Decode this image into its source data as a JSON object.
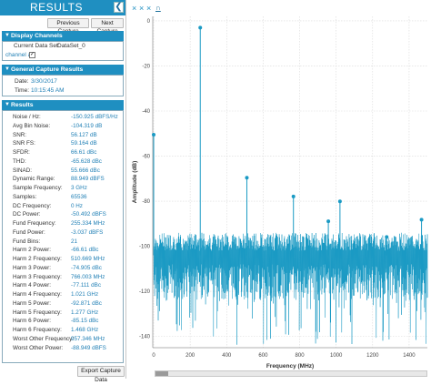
{
  "panel": {
    "title": "RESULTS",
    "collapse_icon": "chevron-left-icon",
    "prev_button": "Previous Capture",
    "next_button": "Next Capture"
  },
  "display_channels": {
    "header": "Display Channels",
    "dataset_label": "Current Data Set:",
    "dataset_value": "DataSet_0",
    "channel_label": "channel a",
    "channel_checked": true
  },
  "general_capture": {
    "header": "General Capture Results",
    "date_label": "Date:",
    "date_value": "3/30/2017",
    "time_label": "Time:",
    "time_value": "10:15:45 AM"
  },
  "results": {
    "header": "Results",
    "rows": [
      {
        "label": "Noise / Hz:",
        "value": "-150.925 dBFS/Hz"
      },
      {
        "label": "Avg Bin Noise:",
        "value": "-104.319 dB"
      },
      {
        "label": "SNR:",
        "value": "56.127 dB"
      },
      {
        "label": "SNR FS:",
        "value": "59.164 dB"
      },
      {
        "label": "SFDR:",
        "value": "66.61 dBc"
      },
      {
        "label": "THD:",
        "value": "-65.628 dBc"
      },
      {
        "label": "SINAD:",
        "value": "55.666 dBc"
      },
      {
        "label": "Dynamic Range:",
        "value": "88.949 dBFS"
      },
      {
        "label": "Sample Frequency:",
        "value": "3 GHz"
      },
      {
        "label": "Samples:",
        "value": "65536"
      },
      {
        "label": "DC Frequency:",
        "value": "0 Hz"
      },
      {
        "label": "DC Power:",
        "value": "-50.492 dBFS"
      },
      {
        "label": "Fund Frequency:",
        "value": "255.334 MHz"
      },
      {
        "label": "Fund Power:",
        "value": "-3.037 dBFS"
      },
      {
        "label": "Fund Bins:",
        "value": "21"
      },
      {
        "label": "Harm 2 Power:",
        "value": "-66.61 dBc"
      },
      {
        "label": "Harm 2 Frequency:",
        "value": "510.669 MHz"
      },
      {
        "label": "Harm 3 Power:",
        "value": "-74.905 dBc"
      },
      {
        "label": "Harm 3 Frequency:",
        "value": "766.003 MHz"
      },
      {
        "label": "Harm 4 Power:",
        "value": "-77.111 dBc"
      },
      {
        "label": "Harm 4 Frequency:",
        "value": "1.021 GHz"
      },
      {
        "label": "Harm 5 Power:",
        "value": "-92.871 dBc"
      },
      {
        "label": "Harm 5 Frequency:",
        "value": "1.277 GHz"
      },
      {
        "label": "Harm 6 Power:",
        "value": "-85.15 dBc"
      },
      {
        "label": "Harm 6 Frequency:",
        "value": "1.468 GHz"
      },
      {
        "label": "Worst Other Frequency:",
        "value": "957.346 MHz"
      },
      {
        "label": "Worst Other Power:",
        "value": "-88.949 dBFS"
      }
    ]
  },
  "export_button": "Export Capture Data",
  "toolbar": {
    "icons": [
      "cursor-x-icon",
      "cursor-y-icon",
      "zoom-fit-icon",
      "marker-icon"
    ]
  },
  "chart_data": {
    "type": "line",
    "title": "",
    "xlabel": "Frequency (MHz)",
    "ylabel": "Amplitude (dB)",
    "xlim": [
      -5,
      1500
    ],
    "ylim": [
      -145,
      2
    ],
    "x_ticks": [
      0,
      200,
      400,
      600,
      800,
      1000,
      1200,
      1400
    ],
    "y_ticks": [
      0,
      -20,
      -40,
      -60,
      -80,
      -100,
      -120,
      -140
    ],
    "grid": true,
    "color": "#1a9ac4",
    "noise_floor_dB": -104,
    "spurs": [
      {
        "x": 0,
        "y": -50.5
      },
      {
        "x": 255.3,
        "y": -3.0
      },
      {
        "x": 510.7,
        "y": -69.6
      },
      {
        "x": 766.0,
        "y": -77.9
      },
      {
        "x": 957.3,
        "y": -88.9
      },
      {
        "x": 1021.0,
        "y": -80.1
      },
      {
        "x": 1277.0,
        "y": -95.9
      },
      {
        "x": 1468.0,
        "y": -88.2
      }
    ]
  }
}
